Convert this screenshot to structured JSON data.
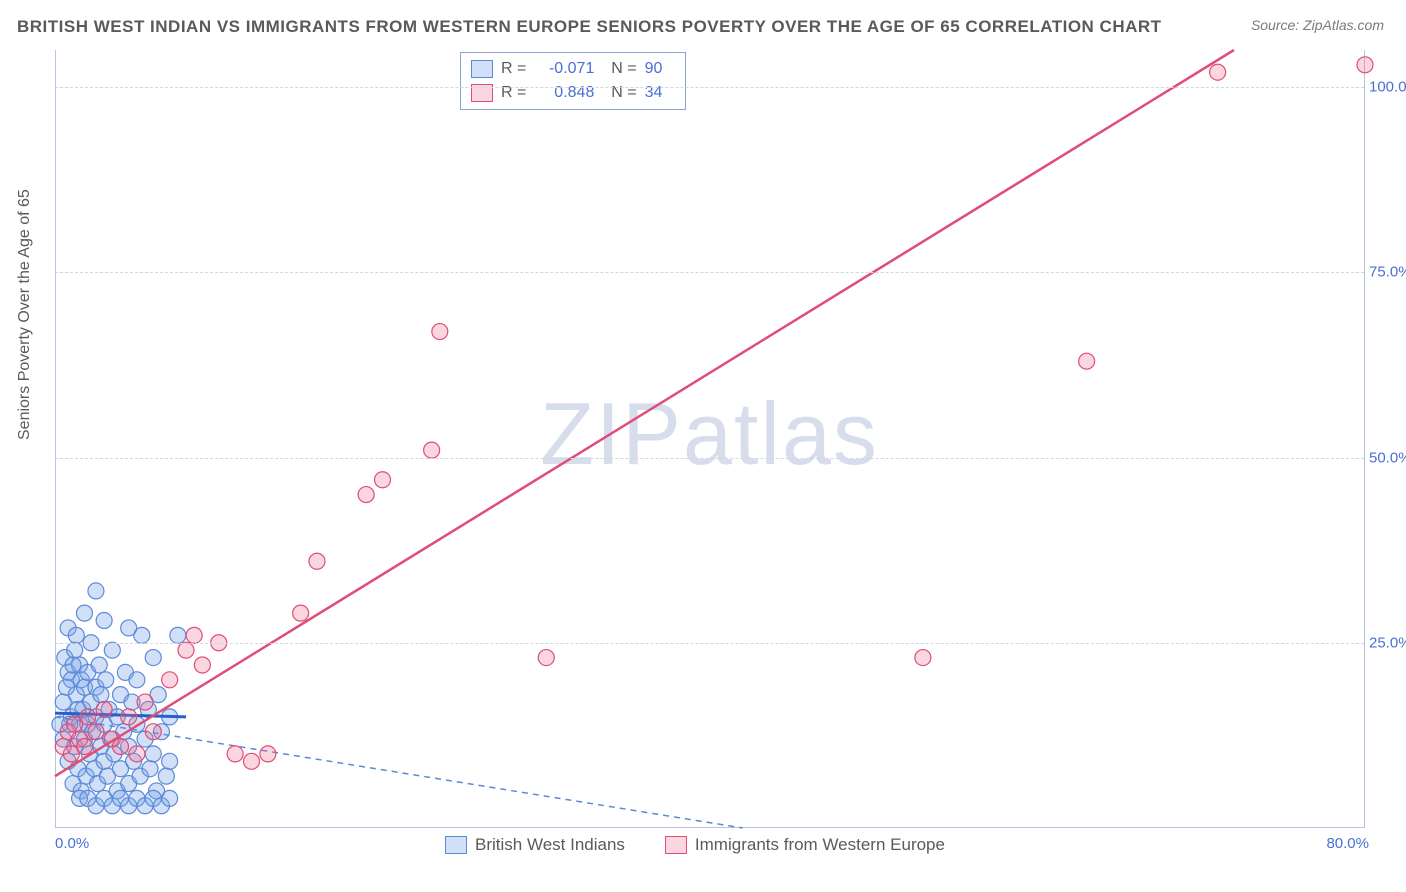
{
  "title": "BRITISH WEST INDIAN VS IMMIGRANTS FROM WESTERN EUROPE SENIORS POVERTY OVER THE AGE OF 65 CORRELATION CHART",
  "source": "Source: ZipAtlas.com",
  "watermark_bold": "ZIP",
  "watermark_thin": "atlas",
  "chart": {
    "type": "scatter",
    "ylabel": "Seniors Poverty Over the Age of 65",
    "xlim": [
      0,
      80
    ],
    "ylim": [
      0,
      105
    ],
    "xticks": [
      {
        "v": 0,
        "l": "0.0%"
      },
      {
        "v": 80,
        "l": "80.0%"
      }
    ],
    "yticks": [
      {
        "v": 25,
        "l": "25.0%"
      },
      {
        "v": 50,
        "l": "50.0%"
      },
      {
        "v": 75,
        "l": "75.0%"
      },
      {
        "v": 100,
        "l": "100.0%"
      }
    ],
    "background_color": "#ffffff",
    "grid_color": "#d0d6e6",
    "axis_color": "#b9c3de",
    "tick_label_color": "#4a6fd4",
    "marker_radius": 8,
    "series": [
      {
        "name": "British West Indians",
        "color": "#7ea5e8",
        "fill": "rgba(126,165,232,0.35)",
        "stroke": "#5b8ad9",
        "R": "-0.071",
        "N": "90",
        "trend": {
          "x1": 0,
          "y1": 15,
          "x2": 42,
          "y2": 0,
          "dash": "6,5",
          "width": 1.5,
          "extra_solid": {
            "x1": 0,
            "y1": 15.5,
            "x2": 8,
            "y2": 15,
            "width": 3
          }
        },
        "points": [
          [
            0.3,
            14
          ],
          [
            0.5,
            12
          ],
          [
            0.6,
            23
          ],
          [
            0.8,
            9
          ],
          [
            0.8,
            21
          ],
          [
            0.8,
            27
          ],
          [
            1.0,
            15
          ],
          [
            1.0,
            20
          ],
          [
            1.1,
            6
          ],
          [
            1.2,
            24
          ],
          [
            1.2,
            11
          ],
          [
            1.3,
            18
          ],
          [
            1.3,
            26
          ],
          [
            1.4,
            8
          ],
          [
            1.5,
            14
          ],
          [
            1.5,
            22
          ],
          [
            1.6,
            20
          ],
          [
            1.6,
            5
          ],
          [
            1.7,
            16
          ],
          [
            1.8,
            12
          ],
          [
            1.8,
            19
          ],
          [
            1.9,
            7
          ],
          [
            2.0,
            21
          ],
          [
            2.0,
            14
          ],
          [
            2.1,
            10
          ],
          [
            2.2,
            17
          ],
          [
            2.2,
            25
          ],
          [
            2.3,
            13
          ],
          [
            2.4,
            8
          ],
          [
            2.5,
            19
          ],
          [
            2.5,
            15
          ],
          [
            2.6,
            6
          ],
          [
            2.7,
            22
          ],
          [
            2.8,
            11
          ],
          [
            2.8,
            18
          ],
          [
            3.0,
            14
          ],
          [
            3.0,
            9
          ],
          [
            3.1,
            20
          ],
          [
            3.2,
            7
          ],
          [
            3.3,
            16
          ],
          [
            3.4,
            12
          ],
          [
            3.5,
            24
          ],
          [
            3.6,
            10
          ],
          [
            3.8,
            15
          ],
          [
            3.8,
            5
          ],
          [
            4.0,
            18
          ],
          [
            4.0,
            8
          ],
          [
            4.2,
            13
          ],
          [
            4.3,
            21
          ],
          [
            4.5,
            11
          ],
          [
            4.5,
            6
          ],
          [
            4.7,
            17
          ],
          [
            4.8,
            9
          ],
          [
            5.0,
            14
          ],
          [
            5.0,
            20
          ],
          [
            5.2,
            7
          ],
          [
            5.3,
            26
          ],
          [
            5.5,
            12
          ],
          [
            5.7,
            16
          ],
          [
            5.8,
            8
          ],
          [
            6.0,
            23
          ],
          [
            6.0,
            10
          ],
          [
            6.2,
            5
          ],
          [
            6.3,
            18
          ],
          [
            6.5,
            13
          ],
          [
            6.8,
            7
          ],
          [
            7.0,
            15
          ],
          [
            7.0,
            9
          ],
          [
            1.5,
            4
          ],
          [
            2.0,
            4
          ],
          [
            2.5,
            3
          ],
          [
            3.0,
            4
          ],
          [
            3.5,
            3
          ],
          [
            4.0,
            4
          ],
          [
            4.5,
            3
          ],
          [
            5.0,
            4
          ],
          [
            5.5,
            3
          ],
          [
            6.0,
            4
          ],
          [
            6.5,
            3
          ],
          [
            7.0,
            4
          ],
          [
            1.8,
            29
          ],
          [
            2.5,
            32
          ],
          [
            3.0,
            28
          ],
          [
            4.5,
            27
          ],
          [
            0.5,
            17
          ],
          [
            0.7,
            19
          ],
          [
            0.9,
            14
          ],
          [
            1.1,
            22
          ],
          [
            1.4,
            16
          ],
          [
            7.5,
            26
          ]
        ]
      },
      {
        "name": "Immigrants from Western Europe",
        "color": "#ec6b8f",
        "fill": "rgba(236,107,143,0.28)",
        "stroke": "#e04d77",
        "R": "0.848",
        "N": "34",
        "trend": {
          "x1": 0,
          "y1": 7,
          "x2": 72,
          "y2": 105,
          "dash": "",
          "width": 2.5
        },
        "points": [
          [
            0.5,
            11
          ],
          [
            0.8,
            13
          ],
          [
            1.0,
            10
          ],
          [
            1.2,
            14
          ],
          [
            1.5,
            12
          ],
          [
            1.8,
            11
          ],
          [
            2.0,
            15
          ],
          [
            2.5,
            13
          ],
          [
            3.0,
            16
          ],
          [
            3.5,
            12
          ],
          [
            4.0,
            11
          ],
          [
            4.5,
            15
          ],
          [
            5.0,
            10
          ],
          [
            5.5,
            17
          ],
          [
            6.0,
            13
          ],
          [
            7.0,
            20
          ],
          [
            8.0,
            24
          ],
          [
            8.5,
            26
          ],
          [
            9.0,
            22
          ],
          [
            10.0,
            25
          ],
          [
            11.0,
            10
          ],
          [
            12.0,
            9
          ],
          [
            13.0,
            10
          ],
          [
            15.0,
            29
          ],
          [
            16.0,
            36
          ],
          [
            19.0,
            45
          ],
          [
            20.0,
            47
          ],
          [
            23.0,
            51
          ],
          [
            23.5,
            67
          ],
          [
            30.0,
            23
          ],
          [
            53.0,
            23
          ],
          [
            63.0,
            63
          ],
          [
            71.0,
            102
          ],
          [
            80.0,
            103
          ]
        ]
      }
    ]
  },
  "legend_bottom": [
    {
      "swatch_fill": "rgba(126,165,232,0.35)",
      "swatch_stroke": "#5b8ad9",
      "label": "British West Indians"
    },
    {
      "swatch_fill": "rgba(236,107,143,0.28)",
      "swatch_stroke": "#e04d77",
      "label": "Immigrants from Western Europe"
    }
  ]
}
